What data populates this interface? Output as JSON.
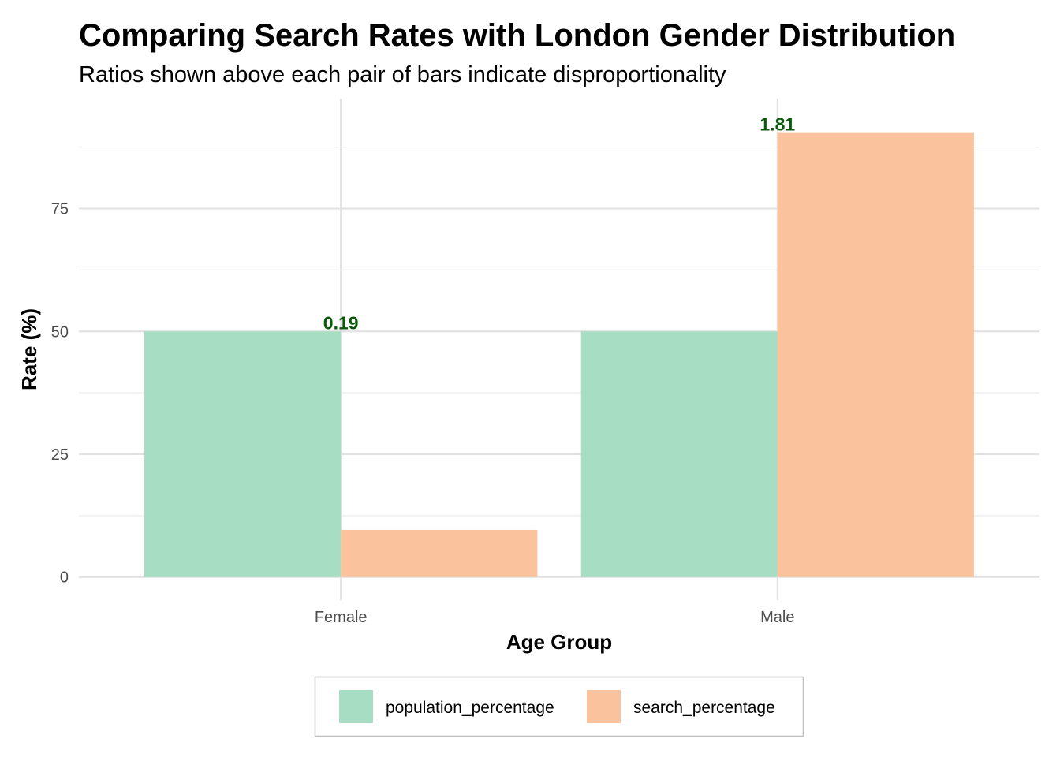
{
  "chart_data": {
    "type": "bar",
    "title": "Comparing Search Rates with London Gender Distribution",
    "subtitle": "Ratios shown above each pair of bars indicate disproportionality",
    "xlabel": "Age Group",
    "ylabel": "Rate (%)",
    "categories": [
      "Female",
      "Male"
    ],
    "series": [
      {
        "name": "population_percentage",
        "values": [
          50,
          50
        ],
        "color": "#A6DDC3"
      },
      {
        "name": "search_percentage",
        "values": [
          9.6,
          90.4
        ],
        "color": "#FBC39D"
      }
    ],
    "annotations": [
      {
        "category": "Female",
        "text": "0.19",
        "y": 50
      },
      {
        "category": "Male",
        "text": "1.81",
        "y": 90.4
      }
    ],
    "annotation_color": "#0B5A0B",
    "y_ticks": [
      0,
      25,
      50,
      75
    ],
    "y_tick_labels": [
      "0",
      "25",
      "50",
      "75"
    ],
    "ylim": [
      -4.7,
      97.4
    ],
    "grid": true,
    "legend_position": "bottom"
  }
}
